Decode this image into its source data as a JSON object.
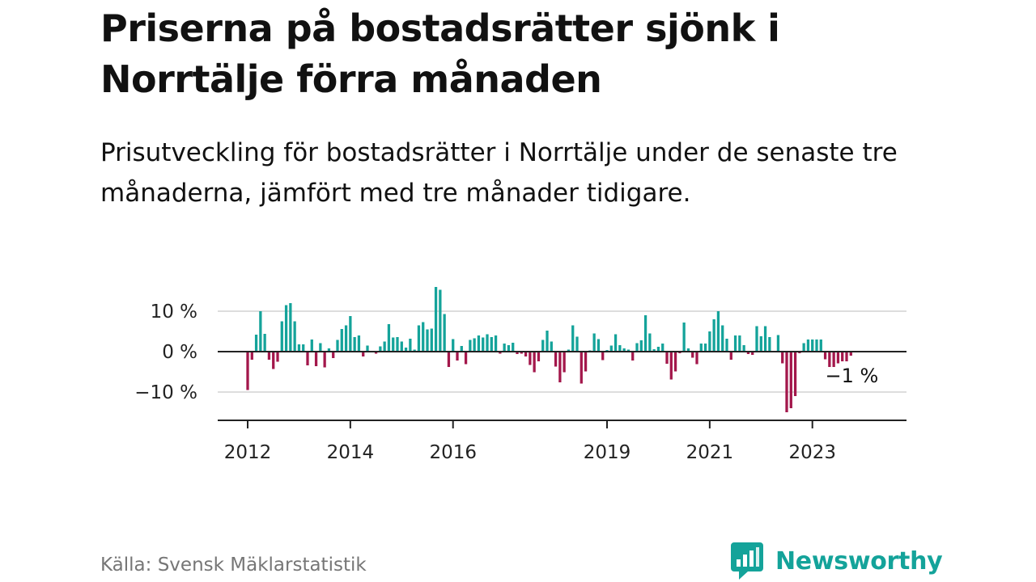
{
  "header": {
    "title": "Priserna på bostadsrätter sjönk i Norrtälje förra månaden",
    "subtitle": "Prisutveckling för bostadsrätter i Norrtälje under de senaste tre månaderna, jämfört med tre månader tidigare."
  },
  "footer": {
    "source": "Källa: Svensk Mäklarstatistik",
    "brand": "Newsworthy"
  },
  "colors": {
    "positive": "#14a39a",
    "negative": "#a3174b",
    "brand": "#14a39a",
    "grid": "#dddddd",
    "axis": "#222222"
  },
  "chart_data": {
    "type": "bar",
    "title": "Priserna på bostadsrätter sjönk i Norrtälje förra månaden",
    "subtitle": "Prisutveckling för bostadsrätter i Norrtälje under de senaste tre månaderna, jämfört med tre månader tidigare.",
    "xlabel": "",
    "ylabel": "",
    "unit": "%",
    "ylim": [
      -17,
      17
    ],
    "yticks": [
      -10,
      0,
      10
    ],
    "ytick_labels": [
      "−10 %",
      "0 %",
      "10 %"
    ],
    "grid": true,
    "x_start": "2012-01",
    "xlim_months": [
      -7,
      154
    ],
    "xticks": [
      {
        "label": "2012",
        "index": 0
      },
      {
        "label": "2014",
        "index": 24
      },
      {
        "label": "2016",
        "index": 48
      },
      {
        "label": "2019",
        "index": 84
      },
      {
        "label": "2021",
        "index": 108
      },
      {
        "label": "2023",
        "index": 132
      }
    ],
    "last_value_label": "−1 %",
    "values": [
      -9.5,
      -2,
      4.2,
      10,
      4.4,
      -2,
      -4.3,
      -2.5,
      7.5,
      11.5,
      12,
      7.5,
      1.8,
      1.8,
      -3.4,
      3,
      -3.6,
      2.1,
      -3.9,
      0.8,
      -1.6,
      2.9,
      5.6,
      6.5,
      8.8,
      3.6,
      4,
      -1.2,
      1.5,
      0.2,
      -0.5,
      1.3,
      2.5,
      6.8,
      3.5,
      3.6,
      2.5,
      1,
      3.2,
      0.5,
      6.5,
      7.3,
      5.5,
      5.7,
      16,
      15.3,
      9.3,
      -3.8,
      3.1,
      -2.2,
      1.4,
      -3.1,
      2.9,
      3.3,
      4,
      3.5,
      4.3,
      3.6,
      4,
      -0.5,
      2,
      1.6,
      2.2,
      -0.6,
      -0.5,
      -1.2,
      -3.3,
      -5.1,
      -2.4,
      2.9,
      5.2,
      2.5,
      -3.7,
      -7.6,
      -5.1,
      0.5,
      6.5,
      3.7,
      -7.9,
      -4.9,
      0.3,
      4.5,
      3.1,
      -2.1,
      0.4,
      1.5,
      4.3,
      1.6,
      0.8,
      0.5,
      -2.2,
      2.1,
      2.8,
      9,
      4.5,
      0.6,
      1.2,
      2,
      -3,
      -6.9,
      -4.9,
      -0.4,
      7.2,
      0.8,
      -1.5,
      -3.1,
      2,
      2,
      5,
      8,
      10,
      6.5,
      3.2,
      -2,
      4,
      4,
      1.6,
      -0.6,
      -0.8,
      6.3,
      3.8,
      6.3,
      3.6,
      -0.2,
      4.1,
      -2.9,
      -15,
      -14,
      -11,
      -0.4,
      2.1,
      3,
      3,
      3,
      3,
      -1.9,
      -3.8,
      -3.8,
      -2.9,
      -2.4,
      -2.4,
      -1
    ]
  }
}
